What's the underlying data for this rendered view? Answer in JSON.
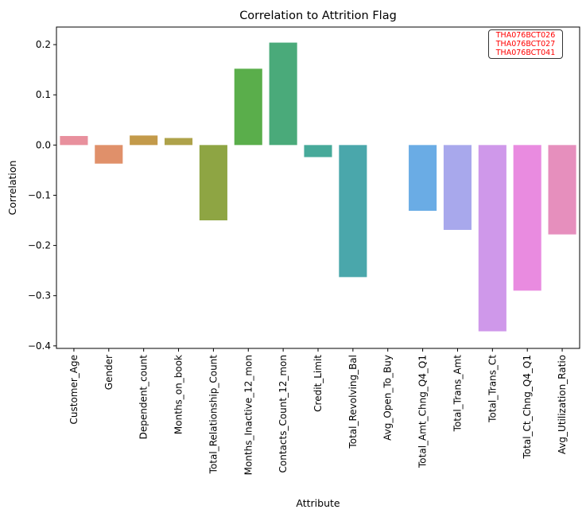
{
  "chart_data": {
    "type": "bar",
    "title": "Correlation to Attrition Flag",
    "xlabel": "Attribute",
    "ylabel": "Correlation",
    "ylim": [
      -0.405,
      0.235
    ],
    "yticks": [
      0.2,
      0.1,
      0.0,
      -0.1,
      -0.2,
      -0.3,
      -0.4
    ],
    "ytick_labels": [
      "0.2",
      "0.1",
      "0.0",
      "−0.1",
      "−0.2",
      "−0.3",
      "−0.4"
    ],
    "categories": [
      "Customer_Age",
      "Gender",
      "Dependent_count",
      "Months_on_book",
      "Total_Relationship_Count",
      "Months_Inactive_12_mon",
      "Contacts_Count_12_mon",
      "Credit_Limit",
      "Total_Revolving_Bal",
      "Avg_Open_To_Buy",
      "Total_Amt_Chng_Q4_Q1",
      "Total_Trans_Amt",
      "Total_Trans_Ct",
      "Total_Ct_Chng_Q4_Q1",
      "Avg_Utilization_Ratio"
    ],
    "values": [
      0.018,
      -0.037,
      0.019,
      0.014,
      -0.15,
      0.152,
      0.204,
      -0.024,
      -0.263,
      0.0,
      -0.131,
      -0.169,
      -0.371,
      -0.29,
      -0.178
    ],
    "colors": [
      "#e8909d",
      "#e0906a",
      "#c39a4a",
      "#aea24a",
      "#8ea543",
      "#5aae4b",
      "#4aaa7a",
      "#47aa9a",
      "#4aa7ab",
      "#4aa9c2",
      "#6aace5",
      "#a8a8ec",
      "#cf98ea",
      "#e98be0",
      "#e68fbd"
    ],
    "annotation": [
      "THA076BCT026",
      "THA076BCT027",
      "THA076BCT041"
    ],
    "annotation_color": "#ff0000"
  }
}
